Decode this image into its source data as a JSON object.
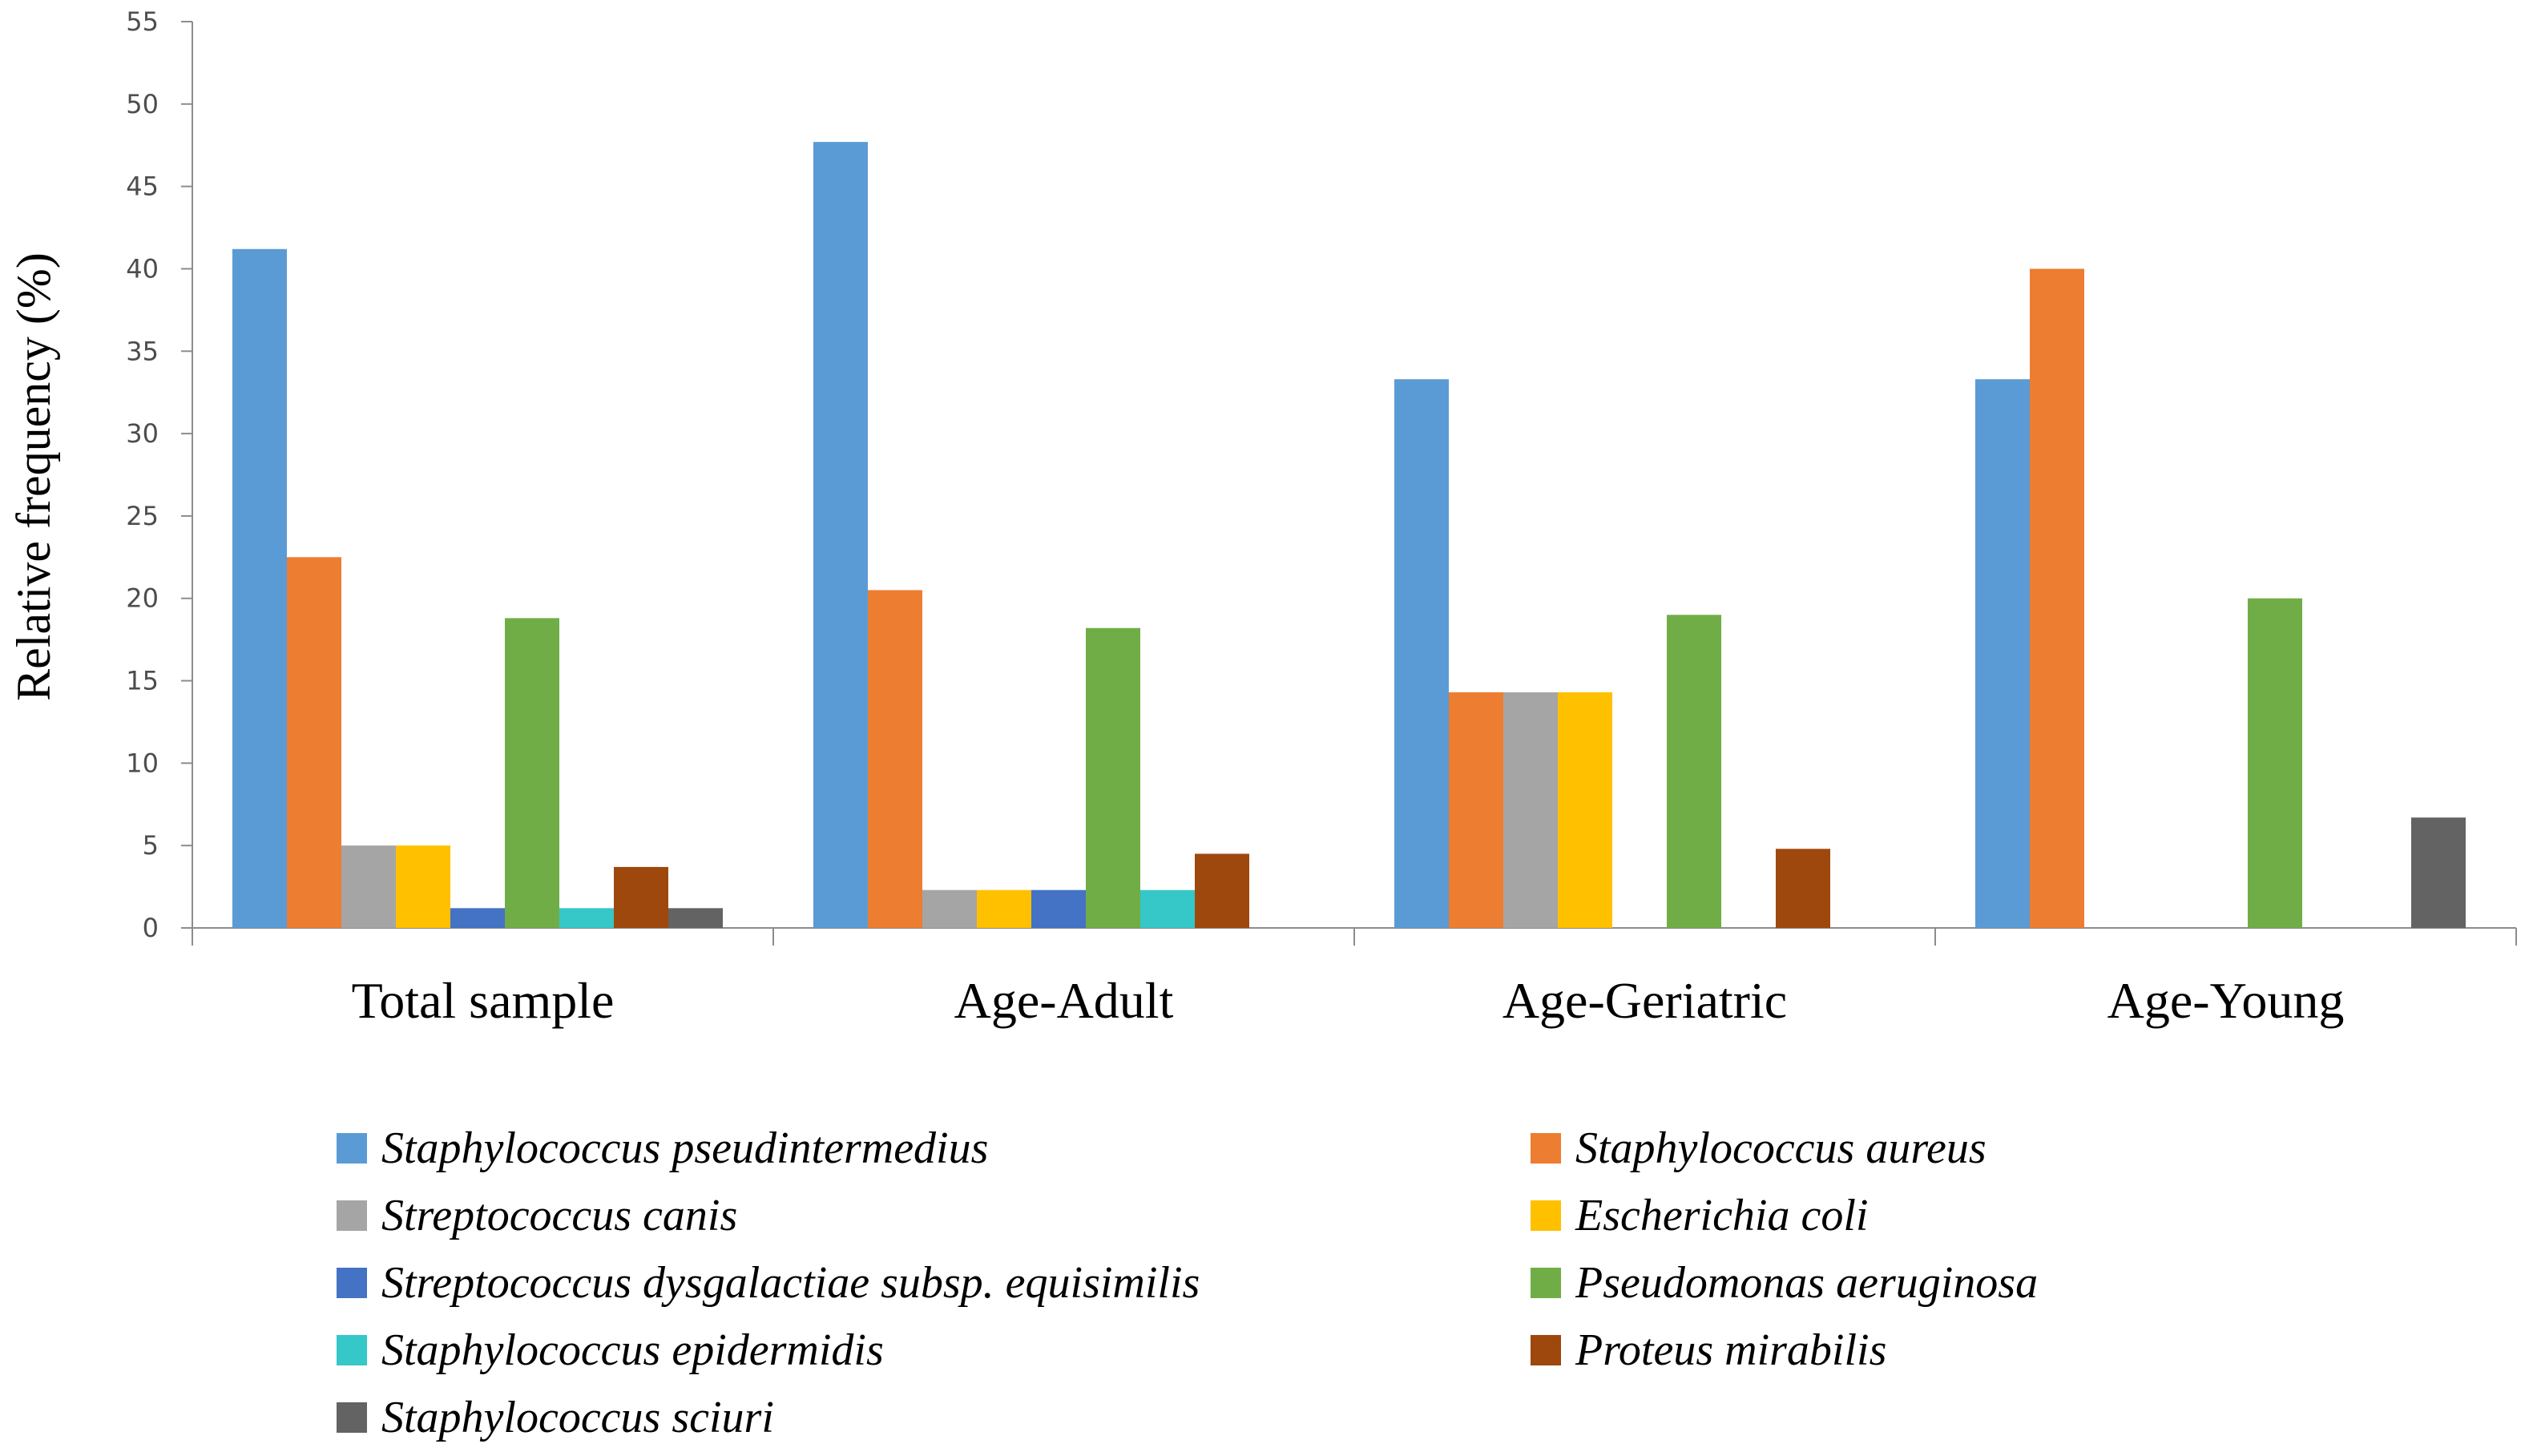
{
  "chart_data": {
    "type": "bar",
    "title": "",
    "xlabel": "",
    "ylabel": "Relative frequency (%)",
    "ylim": [
      0,
      55
    ],
    "yticks": [
      0,
      5,
      10,
      15,
      20,
      25,
      30,
      35,
      40,
      45,
      50,
      55
    ],
    "categories": [
      "Total sample",
      "Age-Adult",
      "Age-Geriatric",
      "Age-Young"
    ],
    "legend_position": "bottom",
    "series": [
      {
        "name": "Staphylococcus pseudintermedius",
        "color": "#5b9bd5",
        "values": [
          41.2,
          47.7,
          33.3,
          33.3
        ]
      },
      {
        "name": "Staphylococcus aureus",
        "color": "#ed7d31",
        "values": [
          22.5,
          20.5,
          14.3,
          40.0
        ]
      },
      {
        "name": "Streptococcus canis",
        "color": "#a5a5a5",
        "values": [
          5.0,
          2.3,
          14.3,
          0
        ]
      },
      {
        "name": "Escherichia coli",
        "color": "#ffc000",
        "values": [
          5.0,
          2.3,
          14.3,
          0
        ]
      },
      {
        "name": "Streptococcus dysgalactiae subsp. equisimilis",
        "color": "#4472c4",
        "values": [
          1.2,
          2.3,
          0,
          0
        ]
      },
      {
        "name": "Pseudomonas aeruginosa",
        "color": "#70ad47",
        "values": [
          18.8,
          18.2,
          19.0,
          20.0
        ]
      },
      {
        "name": "Staphylococcus epidermidis",
        "color": "#36c7c9",
        "values": [
          1.2,
          2.3,
          0,
          0
        ]
      },
      {
        "name": "Proteus mirabilis",
        "color": "#9e480e",
        "values": [
          3.7,
          4.5,
          4.8,
          0
        ]
      },
      {
        "name": "Staphylococcus sciuri",
        "color": "#636363",
        "values": [
          1.2,
          0,
          0,
          6.7
        ]
      }
    ]
  }
}
